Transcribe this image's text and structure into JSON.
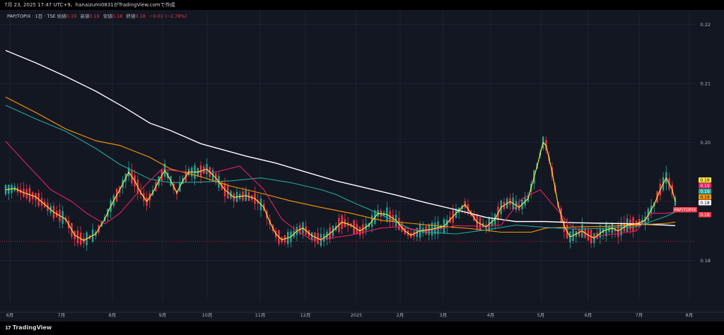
{
  "header": {
    "text": "7月 23, 2025 17:47 UTC+9、hanaizumi0831がTradingView.comで作成"
  },
  "legend": {
    "symbol": "PAP/TOPIX · 1日 · TSE",
    "open_label": "始値",
    "open": "0.19",
    "high_label": "高値",
    "high": "0.19",
    "low_label": "安値",
    "low": "0.18",
    "close_label": "終値",
    "close": "0.18",
    "change": "−0.01 (−2.78%)"
  },
  "footer": {
    "brand": "TradingView",
    "logo_glyph": "17"
  },
  "colors": {
    "background": "#131722",
    "grid": "#1f2330",
    "up": "#26a69a",
    "down": "#f23645",
    "ma_short": "#ffeb3b",
    "ma_mid": "#e91e63",
    "ma_teal": "#26a69a",
    "ma_orange": "#ff9800",
    "ma_long": "#ffffff"
  },
  "chart_data": {
    "type": "candlestick",
    "symbol": "PAP/TOPIX",
    "ylim": [
      0.173,
      0.222
    ],
    "y_ticks": [
      "0.22",
      "0.21",
      "0.20",
      "0.18"
    ],
    "x_ticks": [
      "6月",
      "7月",
      "8月",
      "9月",
      "10月",
      "11月",
      "12月",
      "2025",
      "2月",
      "3月",
      "4月",
      "5月",
      "6月",
      "7月",
      "8月"
    ],
    "price_labels": [
      {
        "value": "0.19",
        "color": "#ffeb3b"
      },
      {
        "value": "0.19",
        "color": "#e91e63"
      },
      {
        "value": "0.19",
        "color": "#26a69a"
      },
      {
        "value": "0.19",
        "color": "#ff9800"
      },
      {
        "value": "0.18",
        "color": "#ffffff"
      },
      {
        "value": "PAP/TOPIX",
        "color": "#f23645"
      },
      {
        "value": "0.18",
        "color": "#f23645"
      }
    ],
    "moving_averages": [
      {
        "color": "#ffffff",
        "points": [
          [
            0,
            0.2156
          ],
          [
            10,
            0.2135
          ],
          [
            20,
            0.2112
          ],
          [
            30,
            0.2087
          ],
          [
            40,
            0.2058
          ],
          [
            48,
            0.2033
          ],
          [
            55,
            0.202
          ],
          [
            65,
            0.1998
          ],
          [
            80,
            0.1977
          ],
          [
            90,
            0.1965
          ],
          [
            100,
            0.195
          ],
          [
            110,
            0.1935
          ],
          [
            120,
            0.1923
          ],
          [
            130,
            0.1911
          ],
          [
            140,
            0.1898
          ],
          [
            150,
            0.1886
          ],
          [
            160,
            0.1873
          ],
          [
            170,
            0.1866
          ],
          [
            180,
            0.1866
          ],
          [
            190,
            0.1864
          ],
          [
            200,
            0.1863
          ],
          [
            210,
            0.1862
          ],
          [
            220,
            0.186
          ],
          [
            223,
            0.1859
          ]
        ]
      },
      {
        "color": "#ff9800",
        "points": [
          [
            0,
            0.2077
          ],
          [
            10,
            0.2051
          ],
          [
            20,
            0.2023
          ],
          [
            30,
            0.2003
          ],
          [
            38,
            0.1995
          ],
          [
            48,
            0.1975
          ],
          [
            55,
            0.1955
          ],
          [
            65,
            0.1942
          ],
          [
            75,
            0.1926
          ],
          [
            85,
            0.1914
          ],
          [
            95,
            0.1901
          ],
          [
            105,
            0.189
          ],
          [
            115,
            0.188
          ],
          [
            125,
            0.1868
          ],
          [
            135,
            0.1863
          ],
          [
            145,
            0.1858
          ],
          [
            155,
            0.1854
          ],
          [
            165,
            0.1848
          ],
          [
            175,
            0.1848
          ],
          [
            180,
            0.1855
          ],
          [
            190,
            0.1857
          ],
          [
            200,
            0.1858
          ],
          [
            210,
            0.186
          ],
          [
            220,
            0.1863
          ],
          [
            223,
            0.1865
          ]
        ]
      },
      {
        "color": "#26a69a",
        "points": [
          [
            0,
            0.2063
          ],
          [
            10,
            0.204
          ],
          [
            20,
            0.2019
          ],
          [
            30,
            0.199
          ],
          [
            38,
            0.1963
          ],
          [
            48,
            0.1938
          ],
          [
            55,
            0.1932
          ],
          [
            65,
            0.1933
          ],
          [
            75,
            0.1935
          ],
          [
            85,
            0.194
          ],
          [
            95,
            0.1932
          ],
          [
            105,
            0.192
          ],
          [
            110,
            0.1912
          ],
          [
            115,
            0.19
          ],
          [
            125,
            0.1878
          ],
          [
            135,
            0.1853
          ],
          [
            140,
            0.1848
          ],
          [
            150,
            0.1845
          ],
          [
            160,
            0.1852
          ],
          [
            170,
            0.186
          ],
          [
            180,
            0.1856
          ],
          [
            190,
            0.1853
          ],
          [
            200,
            0.1855
          ],
          [
            210,
            0.1857
          ],
          [
            220,
            0.1875
          ],
          [
            223,
            0.1882
          ]
        ]
      },
      {
        "color": "#e91e63",
        "points": [
          [
            0,
            0.2002
          ],
          [
            8,
            0.1958
          ],
          [
            15,
            0.192
          ],
          [
            22,
            0.19
          ],
          [
            27,
            0.188
          ],
          [
            33,
            0.1862
          ],
          [
            38,
            0.188
          ],
          [
            44,
            0.1915
          ],
          [
            52,
            0.1955
          ],
          [
            60,
            0.195
          ],
          [
            70,
            0.195
          ],
          [
            78,
            0.196
          ],
          [
            86,
            0.192
          ],
          [
            92,
            0.187
          ],
          [
            97,
            0.185
          ],
          [
            102,
            0.1835
          ],
          [
            108,
            0.1838
          ],
          [
            115,
            0.1843
          ],
          [
            125,
            0.1855
          ],
          [
            130,
            0.1857
          ],
          [
            140,
            0.185
          ],
          [
            150,
            0.1859
          ],
          [
            160,
            0.1858
          ],
          [
            165,
            0.186
          ],
          [
            172,
            0.1905
          ],
          [
            178,
            0.192
          ],
          [
            183,
            0.189
          ],
          [
            188,
            0.186
          ],
          [
            195,
            0.184
          ],
          [
            203,
            0.1845
          ],
          [
            210,
            0.185
          ],
          [
            215,
            0.188
          ],
          [
            220,
            0.188
          ],
          [
            223,
            0.1882
          ]
        ]
      },
      {
        "color": "#ffeb3b",
        "points": [
          [
            0,
            0.192
          ],
          [
            3,
            0.1922
          ],
          [
            6,
            0.1915
          ],
          [
            10,
            0.1908
          ],
          [
            13,
            0.1895
          ],
          [
            16,
            0.1882
          ],
          [
            20,
            0.187
          ],
          [
            23,
            0.1843
          ],
          [
            26,
            0.1834
          ],
          [
            30,
            0.1845
          ],
          [
            33,
            0.187
          ],
          [
            35,
            0.1892
          ],
          [
            38,
            0.192
          ],
          [
            40,
            0.194
          ],
          [
            41,
            0.195
          ],
          [
            43,
            0.1935
          ],
          [
            45,
            0.1915
          ],
          [
            47,
            0.19
          ],
          [
            49,
            0.1915
          ],
          [
            51,
            0.1935
          ],
          [
            53,
            0.1953
          ],
          [
            55,
            0.1935
          ],
          [
            57,
            0.1915
          ],
          [
            59,
            0.1935
          ],
          [
            61,
            0.195
          ],
          [
            64,
            0.195
          ],
          [
            67,
            0.1955
          ],
          [
            70,
            0.194
          ],
          [
            73,
            0.192
          ],
          [
            76,
            0.1907
          ],
          [
            80,
            0.191
          ],
          [
            83,
            0.1905
          ],
          [
            86,
            0.189
          ],
          [
            88,
            0.1865
          ],
          [
            90,
            0.1845
          ],
          [
            92,
            0.1835
          ],
          [
            95,
            0.184
          ],
          [
            97,
            0.185
          ],
          [
            99,
            0.1855
          ],
          [
            102,
            0.1842
          ],
          [
            105,
            0.1835
          ],
          [
            107,
            0.1842
          ],
          [
            109,
            0.185
          ],
          [
            112,
            0.1865
          ],
          [
            115,
            0.186
          ],
          [
            118,
            0.185
          ],
          [
            121,
            0.186
          ],
          [
            124,
            0.188
          ],
          [
            127,
            0.1878
          ],
          [
            130,
            0.1868
          ],
          [
            133,
            0.185
          ],
          [
            135,
            0.1843
          ],
          [
            138,
            0.185
          ],
          [
            142,
            0.1853
          ],
          [
            146,
            0.1858
          ],
          [
            150,
            0.188
          ],
          [
            153,
            0.1895
          ],
          [
            155,
            0.188
          ],
          [
            157,
            0.1865
          ],
          [
            160,
            0.1857
          ],
          [
            163,
            0.187
          ],
          [
            165,
            0.189
          ],
          [
            168,
            0.19
          ],
          [
            171,
            0.189
          ],
          [
            174,
            0.1905
          ],
          [
            177,
            0.196
          ],
          [
            179,
            0.2
          ],
          [
            180,
            0.1995
          ],
          [
            182,
            0.195
          ],
          [
            184,
            0.1895
          ],
          [
            186,
            0.1858
          ],
          [
            188,
            0.184
          ],
          [
            190,
            0.1845
          ],
          [
            192,
            0.185
          ],
          [
            194,
            0.1843
          ],
          [
            196,
            0.1838
          ],
          [
            199,
            0.185
          ],
          [
            202,
            0.1855
          ],
          [
            204,
            0.185
          ],
          [
            207,
            0.186
          ],
          [
            210,
            0.1862
          ],
          [
            213,
            0.1868
          ],
          [
            216,
            0.1895
          ],
          [
            218,
            0.192
          ],
          [
            220,
            0.194
          ],
          [
            222,
            0.192
          ],
          [
            223,
            0.19
          ]
        ]
      }
    ]
  }
}
